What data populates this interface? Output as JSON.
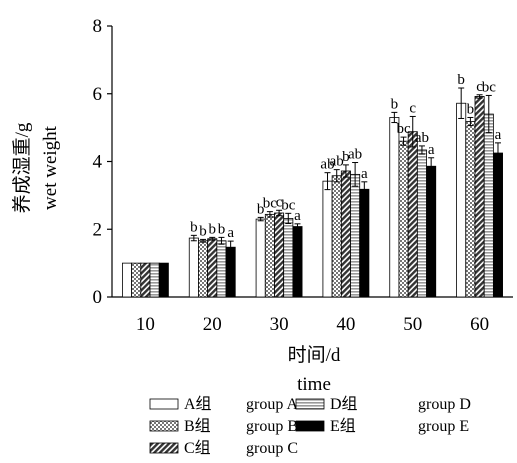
{
  "chart_data": {
    "type": "bar",
    "xlabel": [
      "时间/d",
      "time"
    ],
    "ylabel": [
      "养成湿重/g",
      "wet weight"
    ],
    "ylim": [
      0,
      8
    ],
    "yticks": [
      "0",
      "2",
      "4",
      "6",
      "8"
    ],
    "categories": [
      "10",
      "20",
      "30",
      "40",
      "50",
      "60"
    ],
    "grid": false,
    "legend_position": "bottom",
    "series": [
      {
        "name": "A组",
        "name_en": "group A",
        "pattern": "white",
        "values": [
          1.0,
          1.74,
          2.3,
          3.42,
          5.3,
          5.72
        ],
        "errors": [
          0.02,
          0.08,
          0.05,
          0.25,
          0.15,
          0.45
        ],
        "labels": [
          "",
          "b",
          "b",
          "ab",
          "b",
          "b"
        ]
      },
      {
        "name": "B组",
        "name_en": "group B",
        "pattern": "checker",
        "values": [
          1.0,
          1.66,
          2.44,
          3.58,
          4.6,
          5.18
        ],
        "errors": [
          0.02,
          0.04,
          0.08,
          0.18,
          0.12,
          0.12
        ],
        "labels": [
          "",
          "b",
          "bc",
          "ab",
          "bc",
          "b"
        ]
      },
      {
        "name": "C组",
        "name_en": "group C",
        "pattern": "diag",
        "values": [
          1.0,
          1.72,
          2.48,
          3.72,
          4.88,
          5.92
        ],
        "errors": [
          0.02,
          0.04,
          0.08,
          0.18,
          0.45,
          0.05
        ],
        "labels": [
          "",
          "b",
          "c",
          "b",
          "c",
          "c"
        ]
      },
      {
        "name": "D组",
        "name_en": "group D",
        "pattern": "hstripe",
        "values": [
          1.0,
          1.66,
          2.32,
          3.62,
          4.34,
          5.4
        ],
        "errors": [
          0.02,
          0.1,
          0.15,
          0.35,
          0.12,
          0.55
        ],
        "labels": [
          "",
          "b",
          "bc",
          "ab",
          "ab",
          "bc"
        ]
      },
      {
        "name": "E组",
        "name_en": "group E",
        "pattern": "black",
        "values": [
          1.0,
          1.47,
          2.08,
          3.18,
          3.86,
          4.25
        ],
        "errors": [
          0.02,
          0.18,
          0.08,
          0.22,
          0.25,
          0.3
        ],
        "labels": [
          "",
          "a",
          "a",
          "a",
          "a",
          "a"
        ]
      }
    ]
  }
}
